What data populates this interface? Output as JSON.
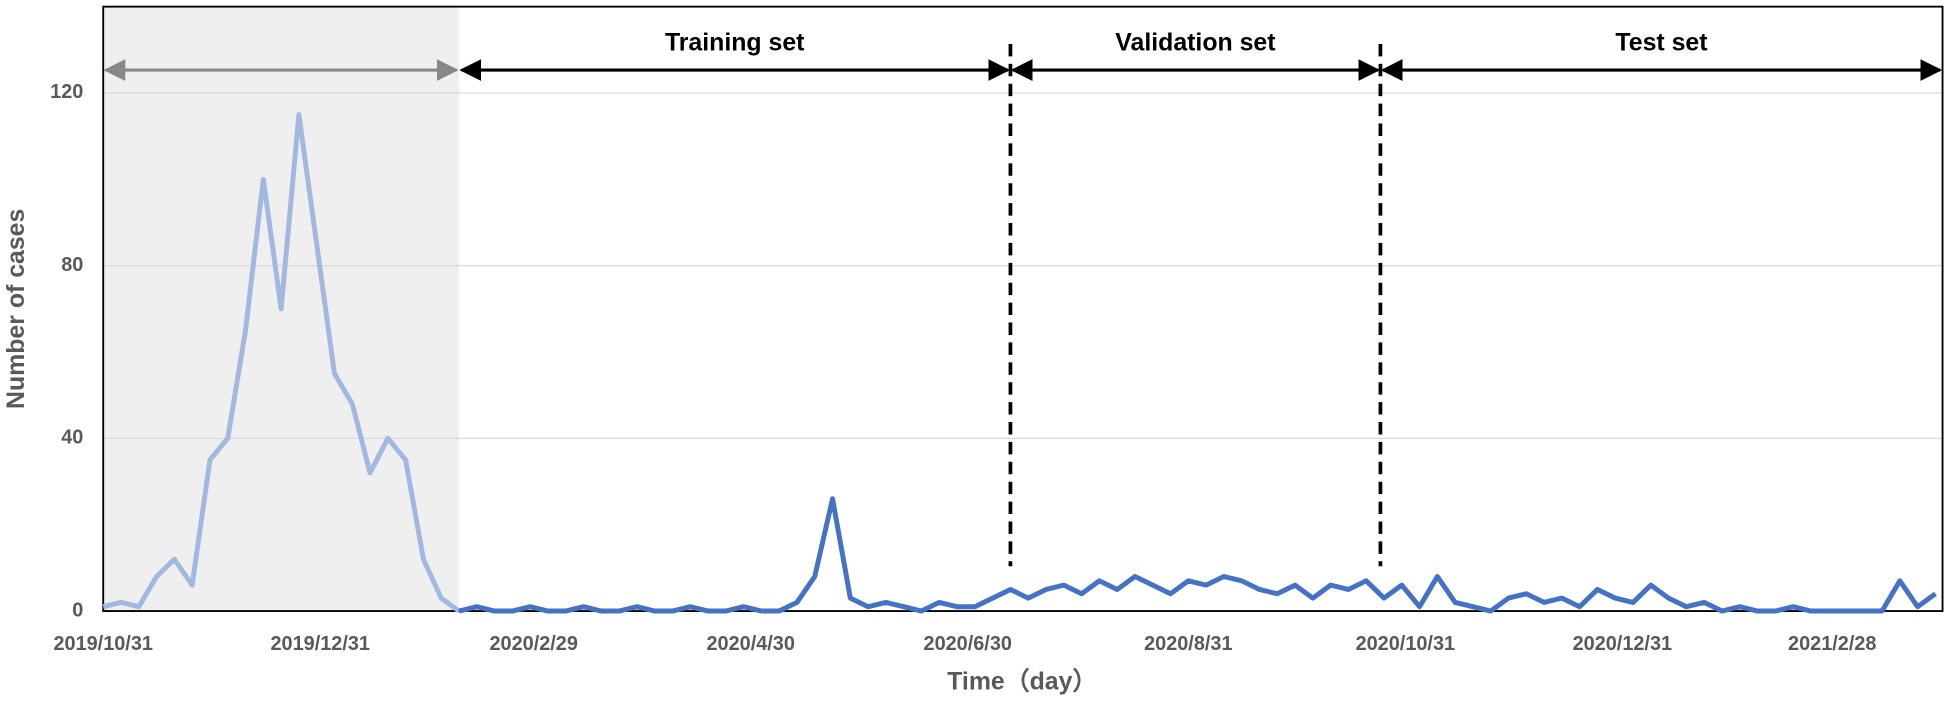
{
  "chart_data": {
    "type": "line",
    "y_label": "Number of cases",
    "x_label": "Time（day）",
    "xlim": [
      "2019/10/31",
      "2021/3/31"
    ],
    "xticks": [
      "2019/10/31",
      "2019/12/31",
      "2020/2/29",
      "2020/4/30",
      "2020/6/30",
      "2020/8/31",
      "2020/10/31",
      "2020/12/31",
      "2021/2/28"
    ],
    "ylim": [
      0,
      140
    ],
    "yticks": [
      0,
      40,
      80,
      120
    ],
    "grid": true,
    "color": "#4472c4",
    "shaded_color": "#a3b8e0",
    "shaded_range": [
      "2019/10/31",
      "2020/2/8"
    ],
    "spans": [
      {
        "label": "Training set",
        "start": "2020/2/8",
        "end": "2020/7/12"
      },
      {
        "label": "Validation set",
        "start": "2020/7/12",
        "end": "2020/10/24"
      },
      {
        "label": "Test set",
        "start": "2020/10/24",
        "end": "2021/3/31"
      }
    ],
    "x": [
      "2019/10/31",
      "2019/11/5",
      "2019/11/10",
      "2019/11/15",
      "2019/11/20",
      "2019/11/25",
      "2019/11/30",
      "2019/12/5",
      "2019/12/10",
      "2019/12/15",
      "2019/12/20",
      "2019/12/25",
      "2019/12/30",
      "2020/1/4",
      "2020/1/9",
      "2020/1/14",
      "2020/1/19",
      "2020/1/24",
      "2020/1/29",
      "2020/2/3",
      "2020/2/8",
      "2020/2/13",
      "2020/2/18",
      "2020/2/23",
      "2020/2/28",
      "2020/3/4",
      "2020/3/9",
      "2020/3/14",
      "2020/3/19",
      "2020/3/24",
      "2020/3/29",
      "2020/4/3",
      "2020/4/8",
      "2020/4/13",
      "2020/4/18",
      "2020/4/23",
      "2020/4/28",
      "2020/5/3",
      "2020/5/8",
      "2020/5/13",
      "2020/5/18",
      "2020/5/23",
      "2020/5/28",
      "2020/6/2",
      "2020/6/7",
      "2020/6/12",
      "2020/6/17",
      "2020/6/22",
      "2020/6/27",
      "2020/7/2",
      "2020/7/7",
      "2020/7/12",
      "2020/7/17",
      "2020/7/22",
      "2020/7/27",
      "2020/8/1",
      "2020/8/6",
      "2020/8/11",
      "2020/8/16",
      "2020/8/21",
      "2020/8/26",
      "2020/8/31",
      "2020/9/5",
      "2020/9/10",
      "2020/9/15",
      "2020/9/20",
      "2020/9/25",
      "2020/9/30",
      "2020/10/5",
      "2020/10/10",
      "2020/10/15",
      "2020/10/20",
      "2020/10/25",
      "2020/10/30",
      "2020/11/4",
      "2020/11/9",
      "2020/11/14",
      "2020/11/19",
      "2020/11/24",
      "2020/11/29",
      "2020/12/4",
      "2020/12/9",
      "2020/12/14",
      "2020/12/19",
      "2020/12/24",
      "2020/12/29",
      "2021/1/3",
      "2021/1/8",
      "2021/1/13",
      "2021/1/18",
      "2021/1/23",
      "2021/1/28",
      "2021/2/2",
      "2021/2/7",
      "2021/2/12",
      "2021/2/17",
      "2021/2/22",
      "2021/2/27",
      "2021/3/4",
      "2021/3/9",
      "2021/3/14",
      "2021/3/19",
      "2021/3/24",
      "2021/3/29"
    ],
    "values": [
      1,
      2,
      1,
      8,
      12,
      6,
      35,
      40,
      65,
      100,
      70,
      115,
      85,
      55,
      48,
      32,
      40,
      35,
      12,
      3,
      0,
      1,
      0,
      0,
      1,
      0,
      0,
      1,
      0,
      0,
      1,
      0,
      0,
      1,
      0,
      0,
      1,
      0,
      0,
      2,
      8,
      26,
      3,
      1,
      2,
      1,
      0,
      2,
      1,
      1,
      3,
      5,
      3,
      5,
      6,
      4,
      7,
      5,
      8,
      6,
      4,
      7,
      6,
      8,
      7,
      5,
      4,
      6,
      3,
      6,
      5,
      7,
      3,
      6,
      1,
      8,
      2,
      1,
      0,
      3,
      4,
      2,
      3,
      1,
      5,
      3,
      2,
      6,
      3,
      1,
      2,
      0,
      1,
      0,
      0,
      1,
      0,
      0,
      0,
      0,
      0,
      7,
      1,
      4
    ]
  }
}
